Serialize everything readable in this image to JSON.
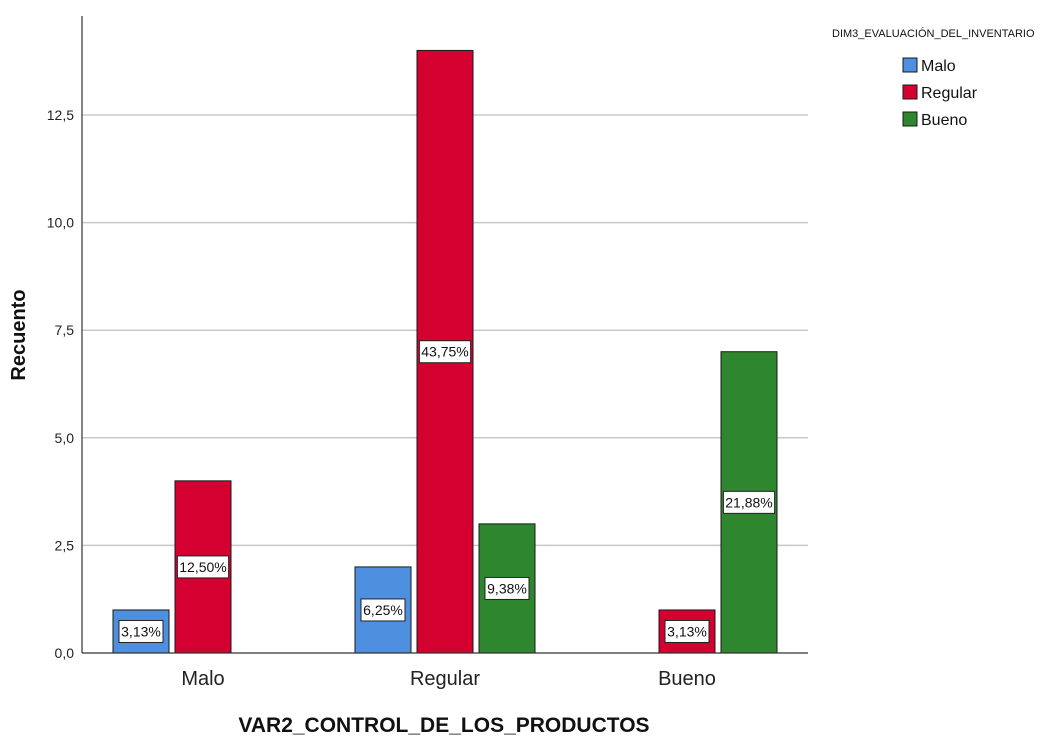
{
  "chart_data": {
    "type": "bar",
    "title": "",
    "xlabel": "VAR2_CONTROL_DE_LOS_PRODUCTOS",
    "ylabel": "Recuento",
    "categories": [
      "Malo",
      "Regular",
      "Bueno"
    ],
    "series": [
      {
        "name": "Malo",
        "color": "#4e8fdf",
        "values": [
          1,
          2,
          0
        ],
        "labels": [
          "3,13%",
          "6,25%",
          ""
        ]
      },
      {
        "name": "Regular",
        "color": "#d4002f",
        "values": [
          4,
          14,
          1
        ],
        "labels": [
          "12,50%",
          "43,75%",
          "3,13%"
        ]
      },
      {
        "name": "Bueno",
        "color": "#2e862e",
        "values": [
          0,
          3,
          7
        ],
        "labels": [
          "",
          "9,38%",
          "21,88%"
        ]
      }
    ],
    "ylim": [
      0,
      14.8
    ],
    "yticks": [
      "0,0",
      "2,5",
      "5,0",
      "7,5",
      "10,0",
      "12,5"
    ],
    "ytick_values": [
      0,
      2.5,
      5,
      7.5,
      10,
      12.5
    ],
    "grid": true,
    "legend": {
      "title": "DIM3_EVALUACIÓN_DEL_INVENTARIO",
      "placement": "top-right"
    }
  }
}
